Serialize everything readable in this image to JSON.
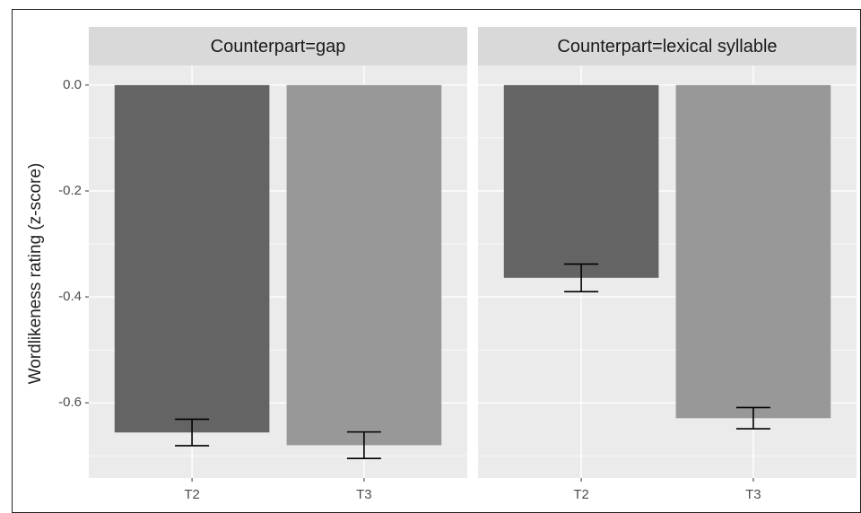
{
  "chart_data": [
    {
      "type": "bar",
      "title": "Counterpart=gap",
      "y_label": "Wordlikeness rating (z-score)",
      "categories": [
        "T2",
        "T3"
      ],
      "values": [
        -0.656,
        -0.68
      ],
      "errors": [
        0.025,
        0.025
      ],
      "colors": [
        "#646464",
        "#989898"
      ],
      "ylim": [
        -0.742,
        0.037
      ],
      "yticks": [
        {
          "value": 0,
          "label": "0.0"
        },
        -0.2,
        -0.4,
        -0.6
      ],
      "minor_yticks": [
        -0.1,
        -0.3,
        -0.5,
        -0.7
      ],
      "grid": true
    },
    {
      "type": "bar",
      "title": "Counterpart=lexical syllable",
      "categories": [
        "T2",
        "T3"
      ],
      "values": [
        -0.364,
        -0.629
      ],
      "errors": [
        0.026,
        0.02
      ],
      "colors": [
        "#646464",
        "#989898"
      ],
      "ylim": [
        -0.742,
        0.037
      ],
      "yticks": [
        {
          "value": 0,
          "label": "0.0"
        },
        -0.2,
        -0.4,
        -0.6
      ],
      "minor_yticks": [
        -0.1,
        -0.3,
        -0.5,
        -0.7
      ],
      "grid": true
    }
  ]
}
